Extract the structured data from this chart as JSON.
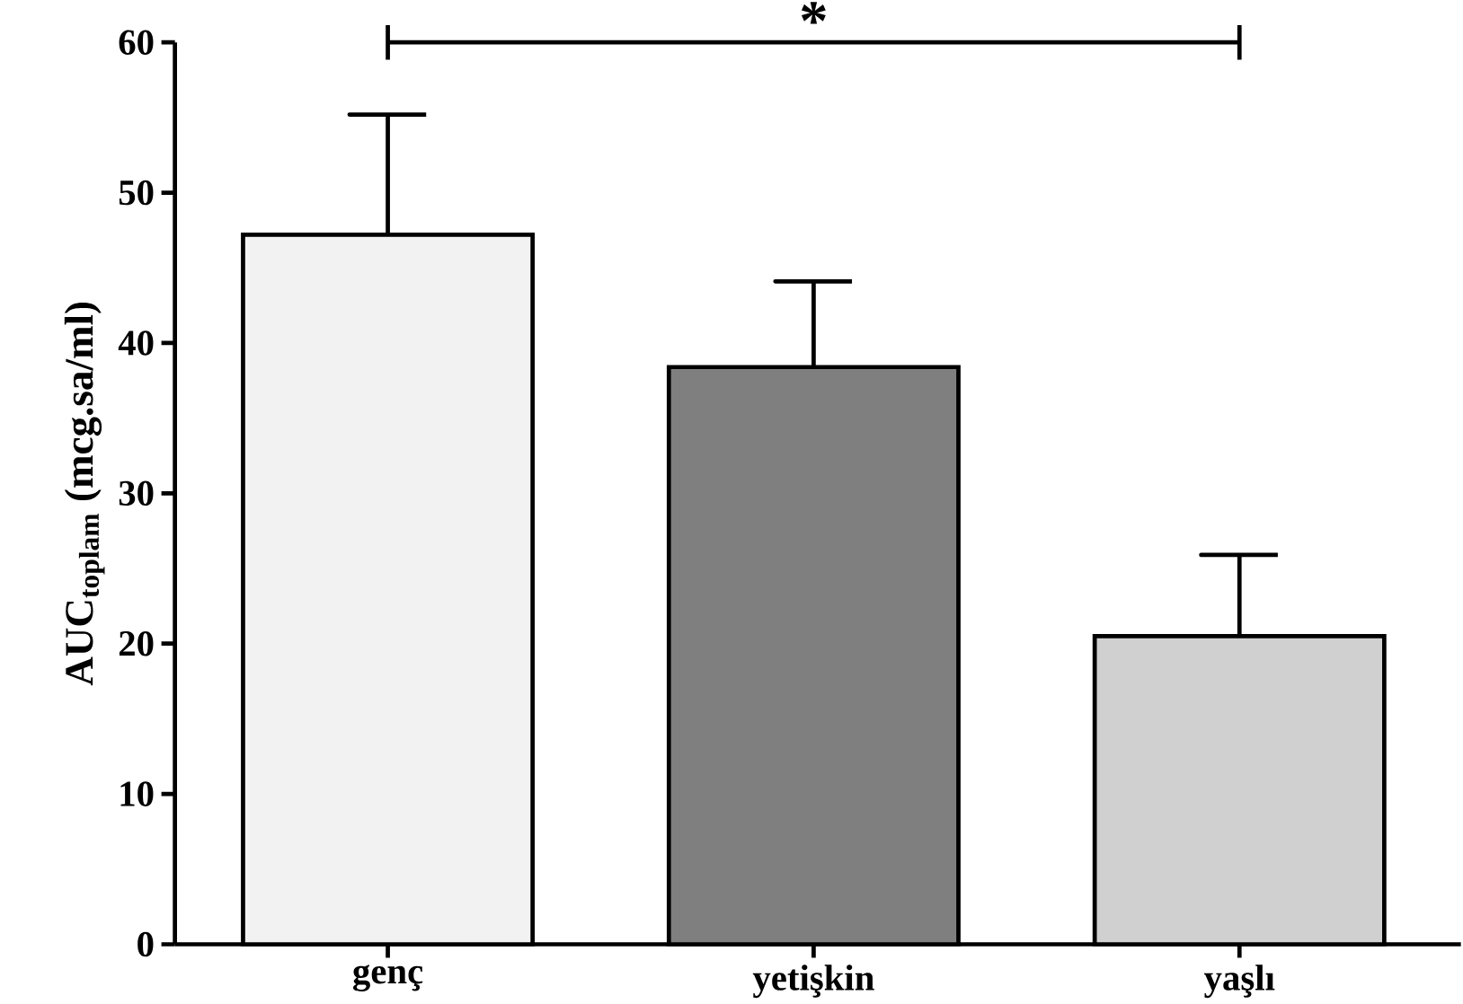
{
  "chart_data": {
    "type": "bar",
    "ylabel": "AUC$_{toplam}$ (mcg.sa/ml)",
    "categories": [
      "genç",
      "yetişkin",
      "yaşlı"
    ],
    "values": [
      47.2,
      38.4,
      20.5
    ],
    "errors": [
      [
        47.2,
        55.2
      ],
      [
        38.4,
        44.1
      ],
      [
        20.5,
        25.9
      ]
    ],
    "colors": [
      "#f2f2f2",
      "#7f7f7f",
      "#d0d0d0"
    ],
    "ylim": [
      0,
      60
    ],
    "yticks": [
      0,
      10,
      20,
      30,
      40,
      50,
      60
    ],
    "grid": false,
    "annotations": [
      "*"
    ]
  }
}
